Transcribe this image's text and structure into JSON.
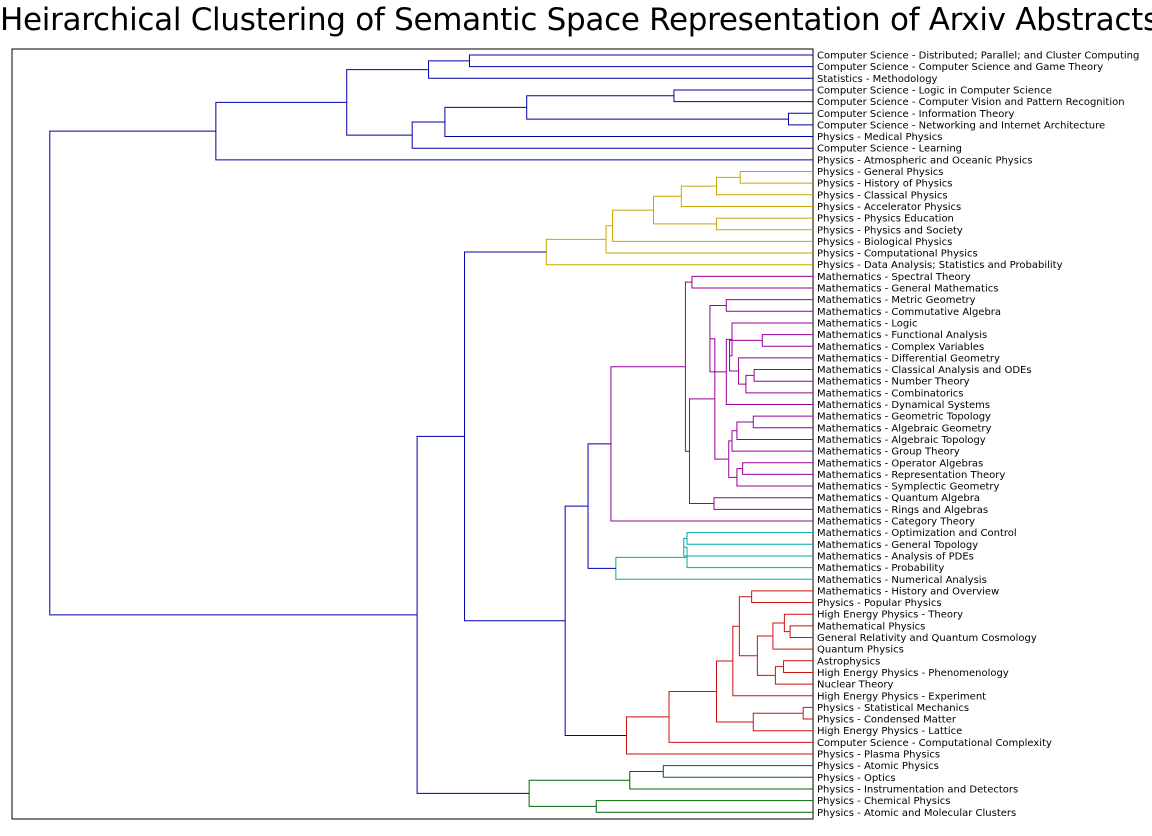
{
  "chart_data": {
    "type": "dendrogram",
    "orientation": "left",
    "title": "Heirarchical Clustering of Semantic Space Representation of Arxiv Abstracts",
    "grid": false,
    "colors": {
      "root": "#0000aa",
      "physics_general": "#c8a800",
      "mathematics": "#990099",
      "mathematics_applied": "#00aaaa",
      "physics_theory": "#cc1111",
      "physics_experimental": "#006600"
    },
    "leaves": [
      "Computer Science - Distributed; Parallel; and Cluster Computing",
      "Computer Science - Computer Science and Game Theory",
      "Statistics - Methodology",
      "Computer Science - Logic in Computer Science",
      "Computer Science - Computer Vision and Pattern Recognition",
      "Computer Science - Information Theory",
      "Computer Science - Networking and Internet Architecture",
      "Physics - Medical Physics",
      "Computer Science - Learning",
      "Physics - Atmospheric and Oceanic Physics",
      "Physics - General Physics",
      "Physics - History of Physics",
      "Physics - Classical Physics",
      "Physics - Accelerator Physics",
      "Physics - Physics Education",
      "Physics - Physics and Society",
      "Physics - Biological Physics",
      "Physics - Computational Physics",
      "Physics - Data Analysis; Statistics and Probability",
      "Mathematics - Spectral Theory",
      "Mathematics - General Mathematics",
      "Mathematics - Metric Geometry",
      "Mathematics - Commutative Algebra",
      "Mathematics - Logic",
      "Mathematics - Functional Analysis",
      "Mathematics - Complex Variables",
      "Mathematics - Differential Geometry",
      "Mathematics - Classical Analysis and ODEs",
      "Mathematics - Number Theory",
      "Mathematics - Combinatorics",
      "Mathematics - Dynamical Systems",
      "Mathematics - Geometric Topology",
      "Mathematics - Algebraic Geometry",
      "Mathematics - Algebraic Topology",
      "Mathematics - Group Theory",
      "Mathematics - Operator Algebras",
      "Mathematics - Representation Theory",
      "Mathematics - Symplectic Geometry",
      "Mathematics - Quantum Algebra",
      "Mathematics - Rings and Algebras",
      "Mathematics - Category Theory",
      "Mathematics - Optimization and Control",
      "Mathematics - General Topology",
      "Mathematics - Analysis of PDEs",
      "Mathematics - Probability",
      "Mathematics - Numerical Analysis",
      "Mathematics - History and Overview",
      "Physics - Popular Physics",
      "High Energy Physics - Theory",
      "Mathematical Physics",
      "General Relativity and Quantum Cosmology",
      "Quantum Physics",
      "Astrophysics",
      "High Energy Physics - Phenomenology",
      "Nuclear Theory",
      "High Energy Physics - Experiment",
      "Physics - Statistical Mechanics",
      "Physics - Condensed Matter",
      "High Energy Physics - Lattice",
      "Computer Science - Computational Complexity",
      "Physics - Plasma Physics",
      "Physics - Atomic Physics",
      "Physics - Optics",
      "Physics - Instrumentation and Detectors",
      "Physics - Chemical Physics",
      "Physics - Atomic and Molecular Clusters"
    ],
    "merges": [
      {
        "c": [
          "L0",
          "L1"
        ],
        "d": 0.42,
        "col": "root"
      },
      {
        "c": [
          "M0",
          "L2"
        ],
        "d": 0.47,
        "col": "root"
      },
      {
        "c": [
          "L3",
          "L4"
        ],
        "d": 0.17,
        "col": "root"
      },
      {
        "c": [
          "L5",
          "L6"
        ],
        "d": 0.03,
        "col": "root"
      },
      {
        "c": [
          "M2",
          "M3"
        ],
        "d": 0.35,
        "col": "root"
      },
      {
        "c": [
          "M4",
          "L7"
        ],
        "d": 0.45,
        "col": "root"
      },
      {
        "c": [
          "M5",
          "L8"
        ],
        "d": 0.49,
        "col": "root"
      },
      {
        "c": [
          "M1",
          "M6"
        ],
        "d": 0.57,
        "col": "root"
      },
      {
        "c": [
          "M7",
          "L9"
        ],
        "d": 0.73,
        "col": "root"
      },
      {
        "c": [
          "L10",
          "L11"
        ],
        "d": 0.089,
        "col": "physics_general"
      },
      {
        "c": [
          "M9",
          "L12"
        ],
        "d": 0.118,
        "col": "physics_general"
      },
      {
        "c": [
          "M10",
          "L13"
        ],
        "d": 0.161,
        "col": "physics_general"
      },
      {
        "c": [
          "L14",
          "L15"
        ],
        "d": 0.118,
        "col": "physics_general"
      },
      {
        "c": [
          "M11",
          "M12"
        ],
        "d": 0.195,
        "col": "physics_general"
      },
      {
        "c": [
          "M13",
          "L16"
        ],
        "d": 0.245,
        "col": "physics_general"
      },
      {
        "c": [
          "M14",
          "L17"
        ],
        "d": 0.253,
        "col": "physics_general"
      },
      {
        "c": [
          "M15",
          "L18"
        ],
        "d": 0.326,
        "col": "physics_general"
      },
      {
        "c": [
          "L19",
          "L20"
        ],
        "d": 0.148,
        "col": "mathematics"
      },
      {
        "c": [
          "L21",
          "L22"
        ],
        "d": 0.106,
        "col": "mathematics"
      },
      {
        "c": [
          "L24",
          "L25"
        ],
        "d": 0.062,
        "col": "mathematics"
      },
      {
        "c": [
          "L27",
          "L28"
        ],
        "d": 0.072,
        "col": "mathematics"
      },
      {
        "c": [
          "M20",
          "L29"
        ],
        "d": 0.082,
        "col": "mathematics"
      },
      {
        "c": [
          "L26",
          "M21"
        ],
        "d": 0.091,
        "col": "mathematics"
      },
      {
        "c": [
          "M19",
          "M22"
        ],
        "d": 0.102,
        "col": "mathematics"
      },
      {
        "c": [
          "L23",
          "M23"
        ],
        "d": 0.099,
        "col": "mathematics"
      },
      {
        "c": [
          "M24",
          "L30"
        ],
        "d": 0.106,
        "col": "mathematics"
      },
      {
        "c": [
          "M18",
          "M25"
        ],
        "d": 0.126,
        "col": "mathematics"
      },
      {
        "c": [
          "L31",
          "L32"
        ],
        "d": 0.073,
        "col": "mathematics"
      },
      {
        "c": [
          "M27",
          "L33"
        ],
        "d": 0.093,
        "col": "mathematics"
      },
      {
        "c": [
          "L35",
          "L36"
        ],
        "d": 0.086,
        "col": "mathematics"
      },
      {
        "c": [
          "M29",
          "L37"
        ],
        "d": 0.093,
        "col": "mathematics"
      },
      {
        "c": [
          "M28",
          "L34"
        ],
        "d": 0.099,
        "col": "mathematics"
      },
      {
        "c": [
          "M31",
          "M30"
        ],
        "d": 0.103,
        "col": "mathematics"
      },
      {
        "c": [
          "M26",
          "M32"
        ],
        "d": 0.12,
        "col": "mathematics"
      },
      {
        "c": [
          "L38",
          "L39"
        ],
        "d": 0.121,
        "col": "mathematics"
      },
      {
        "c": [
          "M33",
          "M34"
        ],
        "d": 0.151,
        "col": "mathematics"
      },
      {
        "c": [
          "M17",
          "M35"
        ],
        "d": 0.156,
        "col": "mathematics"
      },
      {
        "c": [
          "M36",
          "L40"
        ],
        "d": 0.247,
        "col": "mathematics"
      },
      {
        "c": [
          "L41",
          "L42"
        ],
        "d": 0.154,
        "col": "mathematics_applied"
      },
      {
        "c": [
          "M38",
          "L43"
        ],
        "d": 0.158,
        "col": "mathematics_applied"
      },
      {
        "c": [
          "M39",
          "L44"
        ],
        "d": 0.154,
        "col": "mathematics_applied"
      },
      {
        "c": [
          "M40",
          "L45"
        ],
        "d": 0.241,
        "col": "mathematics_applied"
      },
      {
        "c": [
          "L46",
          "L47"
        ],
        "d": 0.075,
        "col": "physics_theory"
      },
      {
        "c": [
          "L49",
          "L50"
        ],
        "d": 0.028,
        "col": "physics_theory"
      },
      {
        "c": [
          "L48",
          "M43"
        ],
        "d": 0.035,
        "col": "physics_theory"
      },
      {
        "c": [
          "M44",
          "L51"
        ],
        "d": 0.049,
        "col": "physics_theory"
      },
      {
        "c": [
          "L52",
          "L53"
        ],
        "d": 0.036,
        "col": "physics_theory"
      },
      {
        "c": [
          "M46",
          "L54"
        ],
        "d": 0.046,
        "col": "physics_theory"
      },
      {
        "c": [
          "M45",
          "M47"
        ],
        "d": 0.068,
        "col": "physics_theory"
      },
      {
        "c": [
          "M42",
          "M48"
        ],
        "d": 0.09,
        "col": "physics_theory"
      },
      {
        "c": [
          "M49",
          "L55"
        ],
        "d": 0.098,
        "col": "physics_theory"
      },
      {
        "c": [
          "L56",
          "L57"
        ],
        "d": 0.012,
        "col": "physics_theory"
      },
      {
        "c": [
          "M51",
          "L58"
        ],
        "d": 0.073,
        "col": "physics_theory"
      },
      {
        "c": [
          "M50",
          "M52"
        ],
        "d": 0.118,
        "col": "physics_theory"
      },
      {
        "c": [
          "M53",
          "L59"
        ],
        "d": 0.176,
        "col": "physics_theory"
      },
      {
        "c": [
          "M54",
          "L60"
        ],
        "d": 0.228,
        "col": "physics_theory"
      },
      {
        "c": [
          "L61",
          "L62"
        ],
        "d": 0.183,
        "col": "physics_experimental"
      },
      {
        "c": [
          "M56",
          "L63"
        ],
        "d": 0.224,
        "col": "physics_experimental"
      },
      {
        "c": [
          "L64",
          "L65"
        ],
        "d": 0.265,
        "col": "physics_experimental"
      },
      {
        "c": [
          "M57",
          "M58"
        ],
        "d": 0.347,
        "col": "physics_experimental"
      },
      {
        "c": [
          "M37",
          "M41"
        ],
        "d": 0.275,
        "col": "root"
      },
      {
        "c": [
          "M60",
          "M55"
        ],
        "d": 0.303,
        "col": "root"
      },
      {
        "c": [
          "M16",
          "M61"
        ],
        "d": 0.426,
        "col": "root"
      },
      {
        "c": [
          "M62",
          "M59"
        ],
        "d": 0.484,
        "col": "root"
      },
      {
        "c": [
          "M8",
          "M63"
        ],
        "d": 0.933,
        "col": "root"
      }
    ]
  }
}
